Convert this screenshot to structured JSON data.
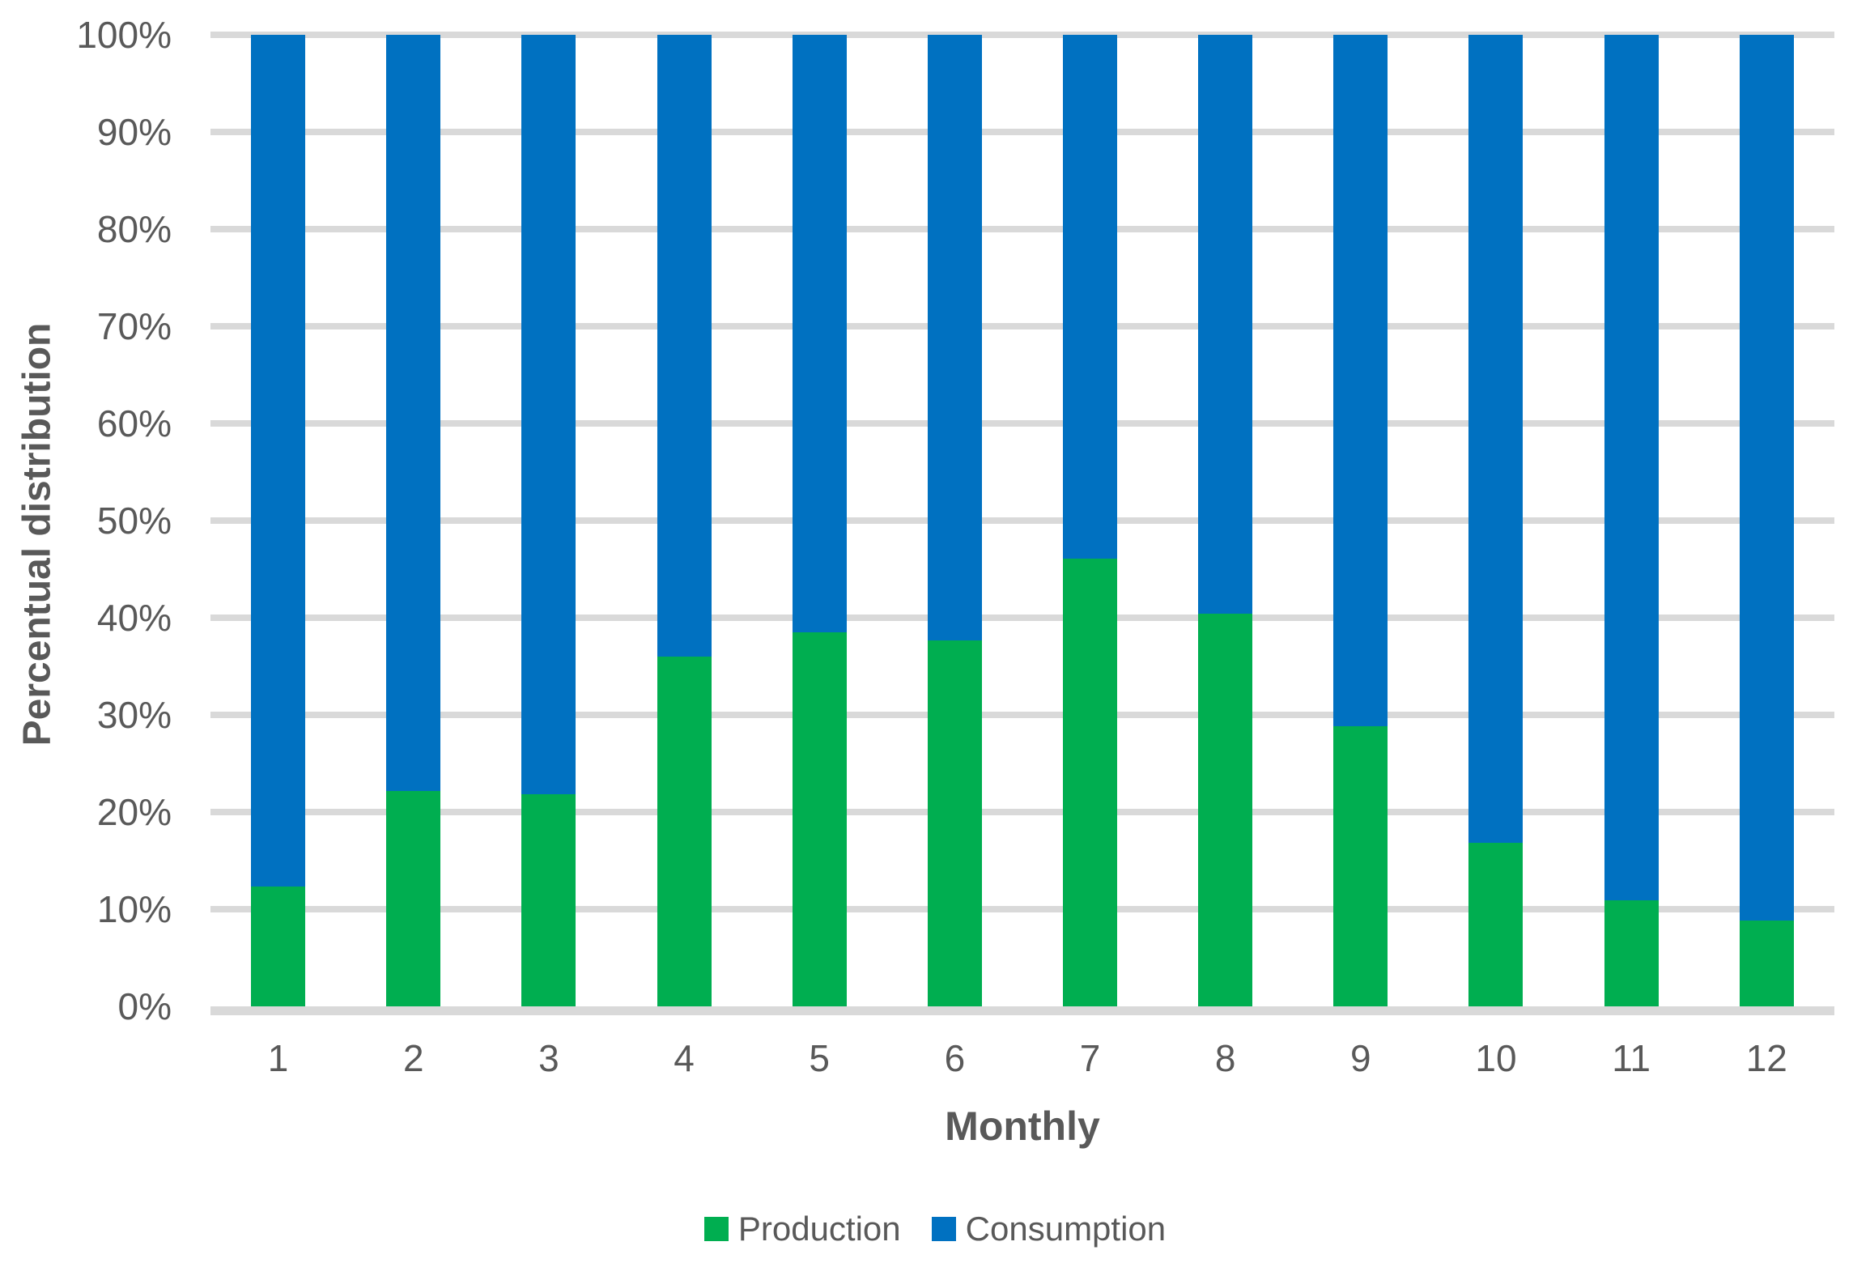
{
  "colors": {
    "production_green": "#00AE50",
    "consumption_blue": "#0071C1",
    "gridline_gray": "#D9D9D9",
    "text_gray": "#595959",
    "background": "#FFFFFF"
  },
  "chart_data": {
    "type": "bar",
    "stacked": true,
    "stacked_100_percent": true,
    "title": "",
    "xlabel": "Monthly",
    "ylabel": "Percentual distribution",
    "categories": [
      "1",
      "2",
      "3",
      "4",
      "5",
      "6",
      "7",
      "8",
      "9",
      "10",
      "11",
      "12"
    ],
    "series": [
      {
        "name": "Production",
        "color": "#00AE50",
        "values": [
          12.3,
          22.2,
          21.8,
          36.0,
          38.5,
          37.7,
          46.1,
          40.4,
          28.8,
          16.8,
          10.9,
          8.8
        ]
      },
      {
        "name": "Consumption",
        "color": "#0071C1",
        "values": [
          87.7,
          77.8,
          78.2,
          64.0,
          61.5,
          62.3,
          53.9,
          59.6,
          71.2,
          83.2,
          89.1,
          91.2
        ]
      }
    ],
    "ylim": [
      0,
      100
    ],
    "y_ticks": [
      "0%",
      "10%",
      "20%",
      "30%",
      "40%",
      "50%",
      "60%",
      "70%",
      "80%",
      "90%",
      "100%"
    ],
    "grid": true,
    "legend_position": "bottom"
  }
}
